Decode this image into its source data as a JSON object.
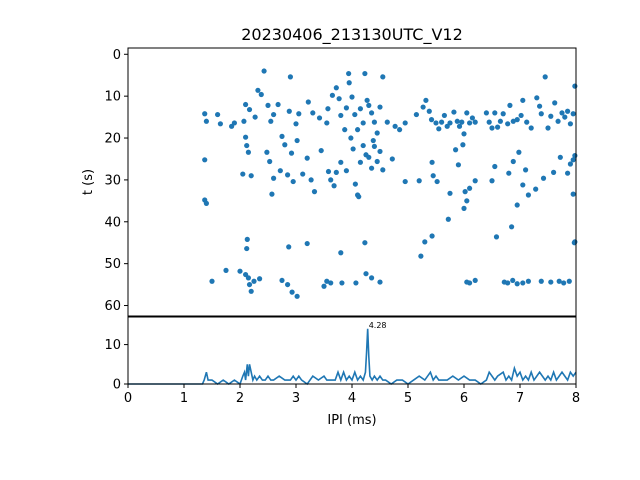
{
  "chart_data": [
    {
      "type": "scatter",
      "title": "20230406_213130UTC_V12",
      "xlabel": "",
      "ylabel": "t (s)",
      "xlim": [
        0,
        8
      ],
      "ylim": [
        62.5,
        -1.5
      ],
      "y_inverted": true,
      "x_tick_labels_shown": false,
      "yticks": [
        0,
        10,
        20,
        30,
        40,
        50,
        60
      ],
      "grid": false,
      "color": "#1f77b4",
      "points": [
        [
          1.37,
          14.2
        ],
        [
          1.4,
          16.0
        ],
        [
          1.6,
          14.4
        ],
        [
          1.65,
          16.6
        ],
        [
          1.85,
          17.2
        ],
        [
          1.9,
          16.4
        ],
        [
          2.07,
          16.0
        ],
        [
          2.1,
          12.0
        ],
        [
          2.17,
          13.2
        ],
        [
          2.27,
          15.0
        ],
        [
          2.32,
          8.6
        ],
        [
          2.38,
          9.6
        ],
        [
          2.43,
          4.0
        ],
        [
          2.5,
          12.2
        ],
        [
          2.55,
          16.0
        ],
        [
          2.6,
          14.4
        ],
        [
          2.68,
          12.0
        ],
        [
          2.75,
          19.6
        ],
        [
          2.88,
          13.6
        ],
        [
          2.9,
          5.4
        ],
        [
          3.0,
          16.6
        ],
        [
          3.05,
          14.2
        ],
        [
          3.22,
          11.4
        ],
        [
          3.3,
          14.0
        ],
        [
          3.42,
          15.2
        ],
        [
          3.55,
          16.4
        ],
        [
          3.57,
          13.0
        ],
        [
          3.65,
          9.8
        ],
        [
          3.72,
          8.0
        ],
        [
          3.77,
          10.6
        ],
        [
          3.8,
          14.6
        ],
        [
          3.87,
          18.0
        ],
        [
          3.9,
          12.8
        ],
        [
          3.94,
          4.6
        ],
        [
          3.95,
          6.8
        ],
        [
          4.0,
          10.2
        ],
        [
          4.05,
          14.4
        ],
        [
          4.1,
          18.0
        ],
        [
          4.15,
          13.0
        ],
        [
          4.2,
          16.4
        ],
        [
          4.23,
          4.6
        ],
        [
          4.27,
          11.0
        ],
        [
          4.3,
          12.2
        ],
        [
          4.35,
          14.0
        ],
        [
          4.4,
          16.2
        ],
        [
          4.45,
          18.8
        ],
        [
          4.5,
          12.6
        ],
        [
          4.55,
          5.4
        ],
        [
          4.63,
          16.2
        ],
        [
          4.77,
          17.2
        ],
        [
          4.85,
          18.0
        ],
        [
          4.95,
          16.4
        ],
        [
          5.15,
          14.4
        ],
        [
          5.27,
          12.6
        ],
        [
          5.32,
          11.0
        ],
        [
          5.38,
          13.6
        ],
        [
          5.42,
          15.6
        ],
        [
          5.5,
          16.4
        ],
        [
          5.55,
          17.8
        ],
        [
          5.6,
          16.2
        ],
        [
          5.65,
          14.6
        ],
        [
          5.7,
          17.2
        ],
        [
          5.75,
          16.4
        ],
        [
          5.82,
          13.8
        ],
        [
          5.88,
          16.0
        ],
        [
          5.92,
          17.2
        ],
        [
          5.96,
          16.2
        ],
        [
          6.0,
          19.0
        ],
        [
          6.05,
          14.0
        ],
        [
          6.1,
          16.4
        ],
        [
          6.15,
          15.2
        ],
        [
          6.2,
          16.2
        ],
        [
          6.4,
          14.0
        ],
        [
          6.45,
          16.2
        ],
        [
          6.5,
          17.6
        ],
        [
          6.55,
          14.0
        ],
        [
          6.6,
          17.4
        ],
        [
          6.65,
          16.0
        ],
        [
          6.7,
          14.2
        ],
        [
          6.78,
          16.6
        ],
        [
          6.82,
          12.2
        ],
        [
          6.88,
          16.0
        ],
        [
          6.95,
          15.6
        ],
        [
          7.02,
          14.6
        ],
        [
          7.05,
          11.0
        ],
        [
          7.12,
          16.2
        ],
        [
          7.2,
          17.6
        ],
        [
          7.3,
          10.4
        ],
        [
          7.35,
          12.4
        ],
        [
          7.38,
          14.2
        ],
        [
          7.45,
          5.4
        ],
        [
          7.5,
          17.6
        ],
        [
          7.55,
          14.8
        ],
        [
          7.62,
          11.6
        ],
        [
          7.68,
          16.0
        ],
        [
          7.75,
          14.0
        ],
        [
          7.8,
          15.0
        ],
        [
          7.85,
          13.6
        ],
        [
          7.9,
          16.6
        ],
        [
          7.95,
          14.2
        ],
        [
          7.98,
          7.6
        ],
        [
          1.37,
          25.2
        ],
        [
          1.37,
          34.8
        ],
        [
          1.4,
          35.6
        ],
        [
          2.05,
          28.6
        ],
        [
          2.1,
          19.8
        ],
        [
          2.12,
          21.8
        ],
        [
          2.15,
          23.4
        ],
        [
          2.2,
          29.0
        ],
        [
          2.48,
          23.4
        ],
        [
          2.53,
          25.6
        ],
        [
          2.57,
          33.4
        ],
        [
          2.6,
          29.6
        ],
        [
          2.72,
          27.8
        ],
        [
          2.8,
          21.6
        ],
        [
          2.85,
          28.8
        ],
        [
          2.92,
          23.6
        ],
        [
          2.95,
          30.4
        ],
        [
          3.02,
          20.6
        ],
        [
          3.12,
          28.6
        ],
        [
          3.2,
          24.8
        ],
        [
          3.27,
          30.0
        ],
        [
          3.33,
          32.8
        ],
        [
          3.45,
          23.0
        ],
        [
          3.58,
          28.0
        ],
        [
          3.62,
          30.0
        ],
        [
          3.68,
          31.4
        ],
        [
          3.72,
          28.2
        ],
        [
          3.8,
          25.8
        ],
        [
          3.9,
          27.8
        ],
        [
          3.98,
          20.0
        ],
        [
          4.02,
          22.6
        ],
        [
          4.06,
          31.0
        ],
        [
          4.1,
          33.6
        ],
        [
          4.12,
          34.0
        ],
        [
          4.15,
          25.8
        ],
        [
          4.2,
          21.8
        ],
        [
          4.25,
          24.0
        ],
        [
          4.3,
          24.6
        ],
        [
          4.35,
          27.2
        ],
        [
          4.38,
          20.6
        ],
        [
          4.4,
          22.0
        ],
        [
          4.45,
          25.6
        ],
        [
          4.5,
          23.2
        ],
        [
          4.55,
          27.6
        ],
        [
          4.72,
          25.0
        ],
        [
          4.95,
          30.4
        ],
        [
          5.2,
          30.2
        ],
        [
          5.43,
          25.8
        ],
        [
          5.45,
          29.0
        ],
        [
          5.52,
          30.4
        ],
        [
          5.75,
          33.2
        ],
        [
          5.85,
          22.8
        ],
        [
          5.9,
          26.4
        ],
        [
          5.98,
          21.6
        ],
        [
          6.02,
          32.8
        ],
        [
          6.05,
          35.0
        ],
        [
          6.1,
          32.0
        ],
        [
          6.2,
          30.2
        ],
        [
          6.5,
          30.2
        ],
        [
          6.55,
          26.8
        ],
        [
          6.8,
          28.4
        ],
        [
          6.88,
          25.6
        ],
        [
          6.98,
          23.4
        ],
        [
          7.05,
          31.2
        ],
        [
          7.1,
          27.6
        ],
        [
          7.15,
          33.6
        ],
        [
          7.28,
          32.2
        ],
        [
          7.42,
          29.6
        ],
        [
          7.6,
          28.2
        ],
        [
          7.72,
          24.6
        ],
        [
          7.85,
          28.4
        ],
        [
          7.9,
          26.2
        ],
        [
          7.95,
          25.2
        ],
        [
          7.98,
          24.2
        ],
        [
          7.95,
          33.4
        ],
        [
          2.13,
          44.2
        ],
        [
          2.12,
          46.4
        ],
        [
          2.87,
          46.0
        ],
        [
          3.2,
          45.2
        ],
        [
          3.8,
          47.4
        ],
        [
          4.23,
          45.0
        ],
        [
          5.23,
          48.2
        ],
        [
          5.3,
          44.8
        ],
        [
          5.43,
          43.4
        ],
        [
          5.72,
          39.4
        ],
        [
          6.0,
          36.8
        ],
        [
          6.58,
          43.6
        ],
        [
          6.85,
          41.2
        ],
        [
          6.95,
          36.0
        ],
        [
          7.97,
          45.0
        ],
        [
          7.98,
          44.8
        ],
        [
          1.75,
          51.6
        ],
        [
          2.0,
          51.8
        ],
        [
          2.1,
          52.6
        ],
        [
          2.15,
          53.4
        ],
        [
          2.17,
          55.0
        ],
        [
          2.2,
          56.6
        ],
        [
          2.25,
          54.2
        ],
        [
          2.35,
          53.6
        ],
        [
          1.5,
          54.2
        ],
        [
          2.75,
          54.0
        ],
        [
          2.85,
          55.0
        ],
        [
          2.93,
          56.8
        ],
        [
          3.02,
          57.8
        ],
        [
          3.5,
          55.4
        ],
        [
          3.55,
          54.2
        ],
        [
          3.62,
          54.6
        ],
        [
          3.82,
          54.6
        ],
        [
          4.07,
          54.6
        ],
        [
          4.25,
          52.4
        ],
        [
          4.35,
          53.4
        ],
        [
          4.5,
          54.4
        ],
        [
          6.05,
          54.4
        ],
        [
          6.1,
          54.6
        ],
        [
          6.2,
          54.0
        ],
        [
          6.72,
          54.4
        ],
        [
          6.78,
          54.6
        ],
        [
          6.87,
          54.0
        ],
        [
          6.95,
          54.8
        ],
        [
          7.05,
          54.6
        ],
        [
          7.15,
          54.2
        ],
        [
          7.38,
          54.2
        ],
        [
          7.55,
          54.4
        ],
        [
          7.7,
          54.2
        ],
        [
          7.78,
          54.6
        ],
        [
          7.88,
          54.2
        ]
      ]
    },
    {
      "type": "line",
      "xlabel": "IPI (ms)",
      "ylabel": "",
      "xlim": [
        0,
        8
      ],
      "ylim": [
        0,
        17
      ],
      "xticks": [
        0,
        1,
        2,
        3,
        4,
        5,
        6,
        7,
        8
      ],
      "yticks": [
        0,
        10
      ],
      "grid": false,
      "color": "#1f77b4",
      "peak_label": {
        "x": 4.28,
        "y": 14,
        "text": "4.28"
      },
      "x": [
        0,
        1.3,
        1.33,
        1.36,
        1.4,
        1.43,
        1.5,
        1.6,
        1.7,
        1.8,
        1.9,
        2.0,
        2.05,
        2.08,
        2.1,
        2.13,
        2.15,
        2.17,
        2.2,
        2.23,
        2.26,
        2.3,
        2.35,
        2.4,
        2.45,
        2.5,
        2.55,
        2.6,
        2.7,
        2.8,
        2.9,
        2.95,
        3.0,
        3.05,
        3.1,
        3.2,
        3.3,
        3.4,
        3.5,
        3.55,
        3.6,
        3.7,
        3.75,
        3.8,
        3.85,
        3.9,
        3.95,
        4.0,
        4.05,
        4.1,
        4.15,
        4.2,
        4.24,
        4.26,
        4.28,
        4.3,
        4.32,
        4.36,
        4.4,
        4.45,
        4.5,
        4.55,
        4.6,
        4.7,
        4.8,
        4.9,
        5.0,
        5.1,
        5.2,
        5.3,
        5.4,
        5.45,
        5.5,
        5.55,
        5.6,
        5.7,
        5.8,
        5.9,
        6.0,
        6.1,
        6.2,
        6.3,
        6.4,
        6.45,
        6.5,
        6.55,
        6.6,
        6.7,
        6.75,
        6.8,
        6.85,
        6.9,
        6.95,
        7.0,
        7.05,
        7.1,
        7.15,
        7.2,
        7.25,
        7.3,
        7.35,
        7.4,
        7.45,
        7.5,
        7.55,
        7.6,
        7.65,
        7.7,
        7.75,
        7.8,
        7.85,
        7.9,
        7.95,
        8.0
      ],
      "y": [
        0,
        0,
        0,
        1,
        3,
        1,
        1,
        0,
        1,
        0,
        1,
        0,
        2,
        3,
        1,
        5,
        2,
        5,
        3,
        1,
        2,
        1,
        2,
        1,
        1,
        2,
        1,
        1,
        2,
        1,
        1,
        2,
        1,
        2,
        1,
        0,
        2,
        1,
        2,
        1,
        1,
        1,
        3,
        1,
        3,
        1,
        2,
        1,
        3,
        1,
        2,
        1,
        3,
        8,
        14,
        7,
        2,
        1,
        2,
        1,
        2,
        1,
        1,
        0,
        1,
        1,
        0,
        1,
        2,
        1,
        3,
        1,
        2,
        1,
        1,
        1,
        2,
        1,
        2,
        1,
        1,
        0,
        1,
        3,
        2,
        1,
        2,
        3,
        1,
        2,
        1,
        4,
        2,
        3,
        1,
        2,
        1,
        3,
        1,
        2,
        3,
        2,
        1,
        2,
        1,
        3,
        1,
        2,
        3,
        2,
        1,
        3,
        2,
        3
      ]
    }
  ]
}
